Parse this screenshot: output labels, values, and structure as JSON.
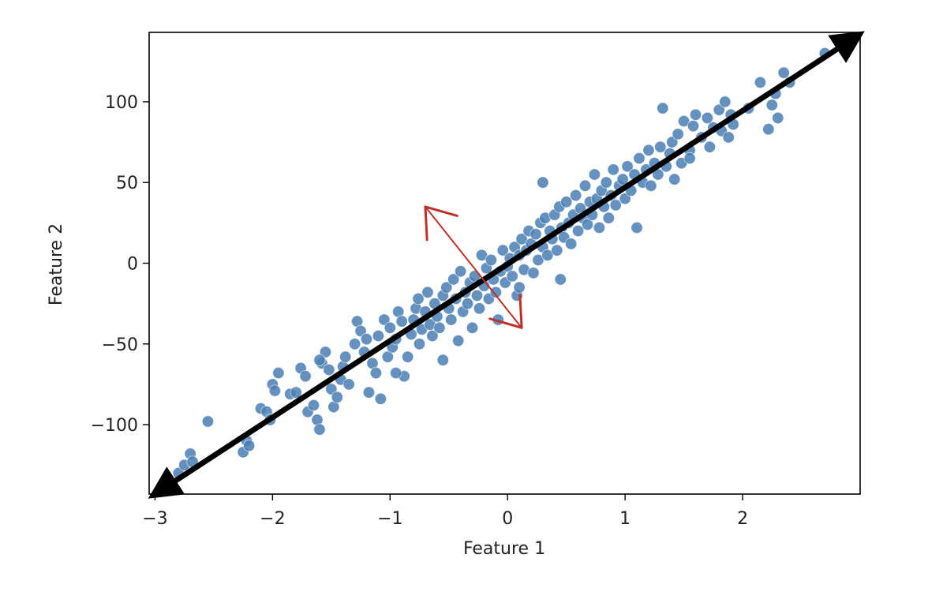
{
  "chart_data": {
    "type": "scatter",
    "xlabel": "Feature 1",
    "ylabel": "Feature 2",
    "xlim": [
      -3.05,
      3.0
    ],
    "ylim": [
      -143,
      143
    ],
    "xticks": [
      {
        "value": -3,
        "label": "−3"
      },
      {
        "value": -2,
        "label": "−2"
      },
      {
        "value": -1,
        "label": "−1"
      },
      {
        "value": 0,
        "label": "0"
      },
      {
        "value": 1,
        "label": "1"
      },
      {
        "value": 2,
        "label": "2"
      }
    ],
    "yticks": [
      {
        "value": -100,
        "label": "−100"
      },
      {
        "value": -50,
        "label": "−50"
      },
      {
        "value": 0,
        "label": "0"
      },
      {
        "value": 50,
        "label": "50"
      },
      {
        "value": 100,
        "label": "100"
      }
    ],
    "grid": false,
    "colors": {
      "points": "#4a7eb3",
      "principal_axis": "#000000",
      "secondary_axis": "#c0302a"
    },
    "series": [
      {
        "points": [
          [
            -2.8,
            -130
          ],
          [
            -2.75,
            -125
          ],
          [
            -2.7,
            -118
          ],
          [
            -2.68,
            -123
          ],
          [
            -2.55,
            -98
          ],
          [
            -2.25,
            -117
          ],
          [
            -2.22,
            -110
          ],
          [
            -2.2,
            -113
          ],
          [
            -2.1,
            -90
          ],
          [
            -2.05,
            -92
          ],
          [
            -2.02,
            -97
          ],
          [
            -2.0,
            -75
          ],
          [
            -1.98,
            -79
          ],
          [
            -1.95,
            -68
          ],
          [
            -1.85,
            -81
          ],
          [
            -1.8,
            -80
          ],
          [
            -1.76,
            -65
          ],
          [
            -1.72,
            -70
          ],
          [
            -1.7,
            -92
          ],
          [
            -1.65,
            -88
          ],
          [
            -1.62,
            -97
          ],
          [
            -1.6,
            -103
          ],
          [
            -1.58,
            -62
          ],
          [
            -1.55,
            -55
          ],
          [
            -1.52,
            -66
          ],
          [
            -1.5,
            -78
          ],
          [
            -1.48,
            -89
          ],
          [
            -1.45,
            -83
          ],
          [
            -1.42,
            -72
          ],
          [
            -1.4,
            -64
          ],
          [
            -1.38,
            -58
          ],
          [
            -1.35,
            -75
          ],
          [
            -1.3,
            -50
          ],
          [
            -1.28,
            -36
          ],
          [
            -1.25,
            -42
          ],
          [
            -1.22,
            -55
          ],
          [
            -1.2,
            -47
          ],
          [
            -1.18,
            -80
          ],
          [
            -1.15,
            -62
          ],
          [
            -1.12,
            -68
          ],
          [
            -1.1,
            -45
          ],
          [
            -1.08,
            -84
          ],
          [
            -1.05,
            -35
          ],
          [
            -1.02,
            -58
          ],
          [
            -1.0,
            -40
          ],
          [
            -0.98,
            -52
          ],
          [
            -0.95,
            -47
          ],
          [
            -0.93,
            -30
          ],
          [
            -0.9,
            -36
          ],
          [
            -0.88,
            -70
          ],
          [
            -0.85,
            -58
          ],
          [
            -0.82,
            -44
          ],
          [
            -0.8,
            -35
          ],
          [
            -0.78,
            -28
          ],
          [
            -0.76,
            -22
          ],
          [
            -0.75,
            -50
          ],
          [
            -0.73,
            -41
          ],
          [
            -0.7,
            -30
          ],
          [
            -0.68,
            -18
          ],
          [
            -0.66,
            -38
          ],
          [
            -0.64,
            -45
          ],
          [
            -0.62,
            -25
          ],
          [
            -0.6,
            -33
          ],
          [
            -0.58,
            -40
          ],
          [
            -0.55,
            -20
          ],
          [
            -0.52,
            -15
          ],
          [
            -0.5,
            -28
          ],
          [
            -0.48,
            -35
          ],
          [
            -0.46,
            -10
          ],
          [
            -0.44,
            -22
          ],
          [
            -0.42,
            -48
          ],
          [
            -0.4,
            -5
          ],
          [
            -0.38,
            -30
          ],
          [
            -0.36,
            -18
          ],
          [
            -0.34,
            -25
          ],
          [
            -0.32,
            -12
          ],
          [
            -0.3,
            -40
          ],
          [
            -0.28,
            -8
          ],
          [
            -0.26,
            -20
          ],
          [
            -0.24,
            -28
          ],
          [
            -0.22,
            5
          ],
          [
            -0.2,
            -14
          ],
          [
            -0.18,
            -3
          ],
          [
            -0.16,
            -22
          ],
          [
            -0.14,
            2
          ],
          [
            -0.12,
            -10
          ],
          [
            -0.1,
            -18
          ],
          [
            -0.08,
            -35
          ],
          [
            -0.06,
            -5
          ],
          [
            -0.04,
            8
          ],
          [
            -0.02,
            -12
          ],
          [
            0.0,
            -2
          ],
          [
            0.02,
            3
          ],
          [
            0.04,
            -8
          ],
          [
            0.06,
            10
          ],
          [
            0.08,
            -20
          ],
          [
            0.1,
            5
          ],
          [
            0.12,
            15
          ],
          [
            0.14,
            -4
          ],
          [
            0.16,
            8
          ],
          [
            0.18,
            20
          ],
          [
            0.2,
            12
          ],
          [
            0.22,
            -6
          ],
          [
            0.24,
            18
          ],
          [
            0.26,
            2
          ],
          [
            0.28,
            25
          ],
          [
            0.3,
            10
          ],
          [
            0.32,
            28
          ],
          [
            0.34,
            5
          ],
          [
            0.36,
            20
          ],
          [
            0.38,
            15
          ],
          [
            0.4,
            30
          ],
          [
            0.42,
            8
          ],
          [
            0.44,
            35
          ],
          [
            0.46,
            22
          ],
          [
            0.48,
            16
          ],
          [
            0.5,
            38
          ],
          [
            0.52,
            25
          ],
          [
            0.54,
            12
          ],
          [
            0.56,
            30
          ],
          [
            0.58,
            42
          ],
          [
            0.6,
            20
          ],
          [
            0.62,
            34
          ],
          [
            0.64,
            28
          ],
          [
            0.66,
            48
          ],
          [
            0.68,
            24
          ],
          [
            0.7,
            38
          ],
          [
            0.72,
            30
          ],
          [
            0.74,
            55
          ],
          [
            0.76,
            40
          ],
          [
            0.78,
            22
          ],
          [
            0.8,
            45
          ],
          [
            0.82,
            35
          ],
          [
            0.84,
            50
          ],
          [
            0.86,
            28
          ],
          [
            0.88,
            42
          ],
          [
            0.9,
            58
          ],
          [
            0.92,
            36
          ],
          [
            0.95,
            48
          ],
          [
            0.98,
            52
          ],
          [
            1.0,
            40
          ],
          [
            1.02,
            60
          ],
          [
            1.05,
            45
          ],
          [
            1.08,
            55
          ],
          [
            1.1,
            22
          ],
          [
            1.12,
            65
          ],
          [
            1.15,
            50
          ],
          [
            1.18,
            58
          ],
          [
            1.2,
            70
          ],
          [
            1.22,
            48
          ],
          [
            1.25,
            62
          ],
          [
            1.28,
            55
          ],
          [
            1.3,
            72
          ],
          [
            1.32,
            96
          ],
          [
            1.35,
            60
          ],
          [
            1.38,
            68
          ],
          [
            1.4,
            75
          ],
          [
            1.42,
            52
          ],
          [
            1.45,
            80
          ],
          [
            1.48,
            62
          ],
          [
            1.5,
            88
          ],
          [
            1.55,
            70
          ],
          [
            1.58,
            85
          ],
          [
            1.6,
            92
          ],
          [
            1.65,
            78
          ],
          [
            1.7,
            90
          ],
          [
            1.72,
            72
          ],
          [
            1.75,
            84
          ],
          [
            1.8,
            95
          ],
          [
            1.82,
            82
          ],
          [
            1.85,
            100
          ],
          [
            1.88,
            78
          ],
          [
            1.9,
            92
          ],
          [
            1.92,
            86
          ],
          [
            2.05,
            96
          ],
          [
            2.15,
            112
          ],
          [
            2.22,
            83
          ],
          [
            2.25,
            98
          ],
          [
            2.28,
            105
          ],
          [
            2.3,
            90
          ],
          [
            2.35,
            118
          ],
          [
            2.4,
            112
          ],
          [
            2.7,
            130
          ],
          [
            0.3,
            50
          ],
          [
            0.1,
            -15
          ],
          [
            -0.55,
            -60
          ],
          [
            -1.6,
            -60
          ],
          [
            1.55,
            65
          ],
          [
            0.45,
            -10
          ],
          [
            -0.95,
            -68
          ]
        ]
      }
    ],
    "annotations": {
      "principal_axis": {
        "from": [
          -3.0,
          -143
        ],
        "to": [
          2.98,
          141
        ]
      },
      "secondary_axis": {
        "from": [
          0.12,
          -40
        ],
        "to": [
          -0.7,
          35
        ]
      }
    }
  }
}
